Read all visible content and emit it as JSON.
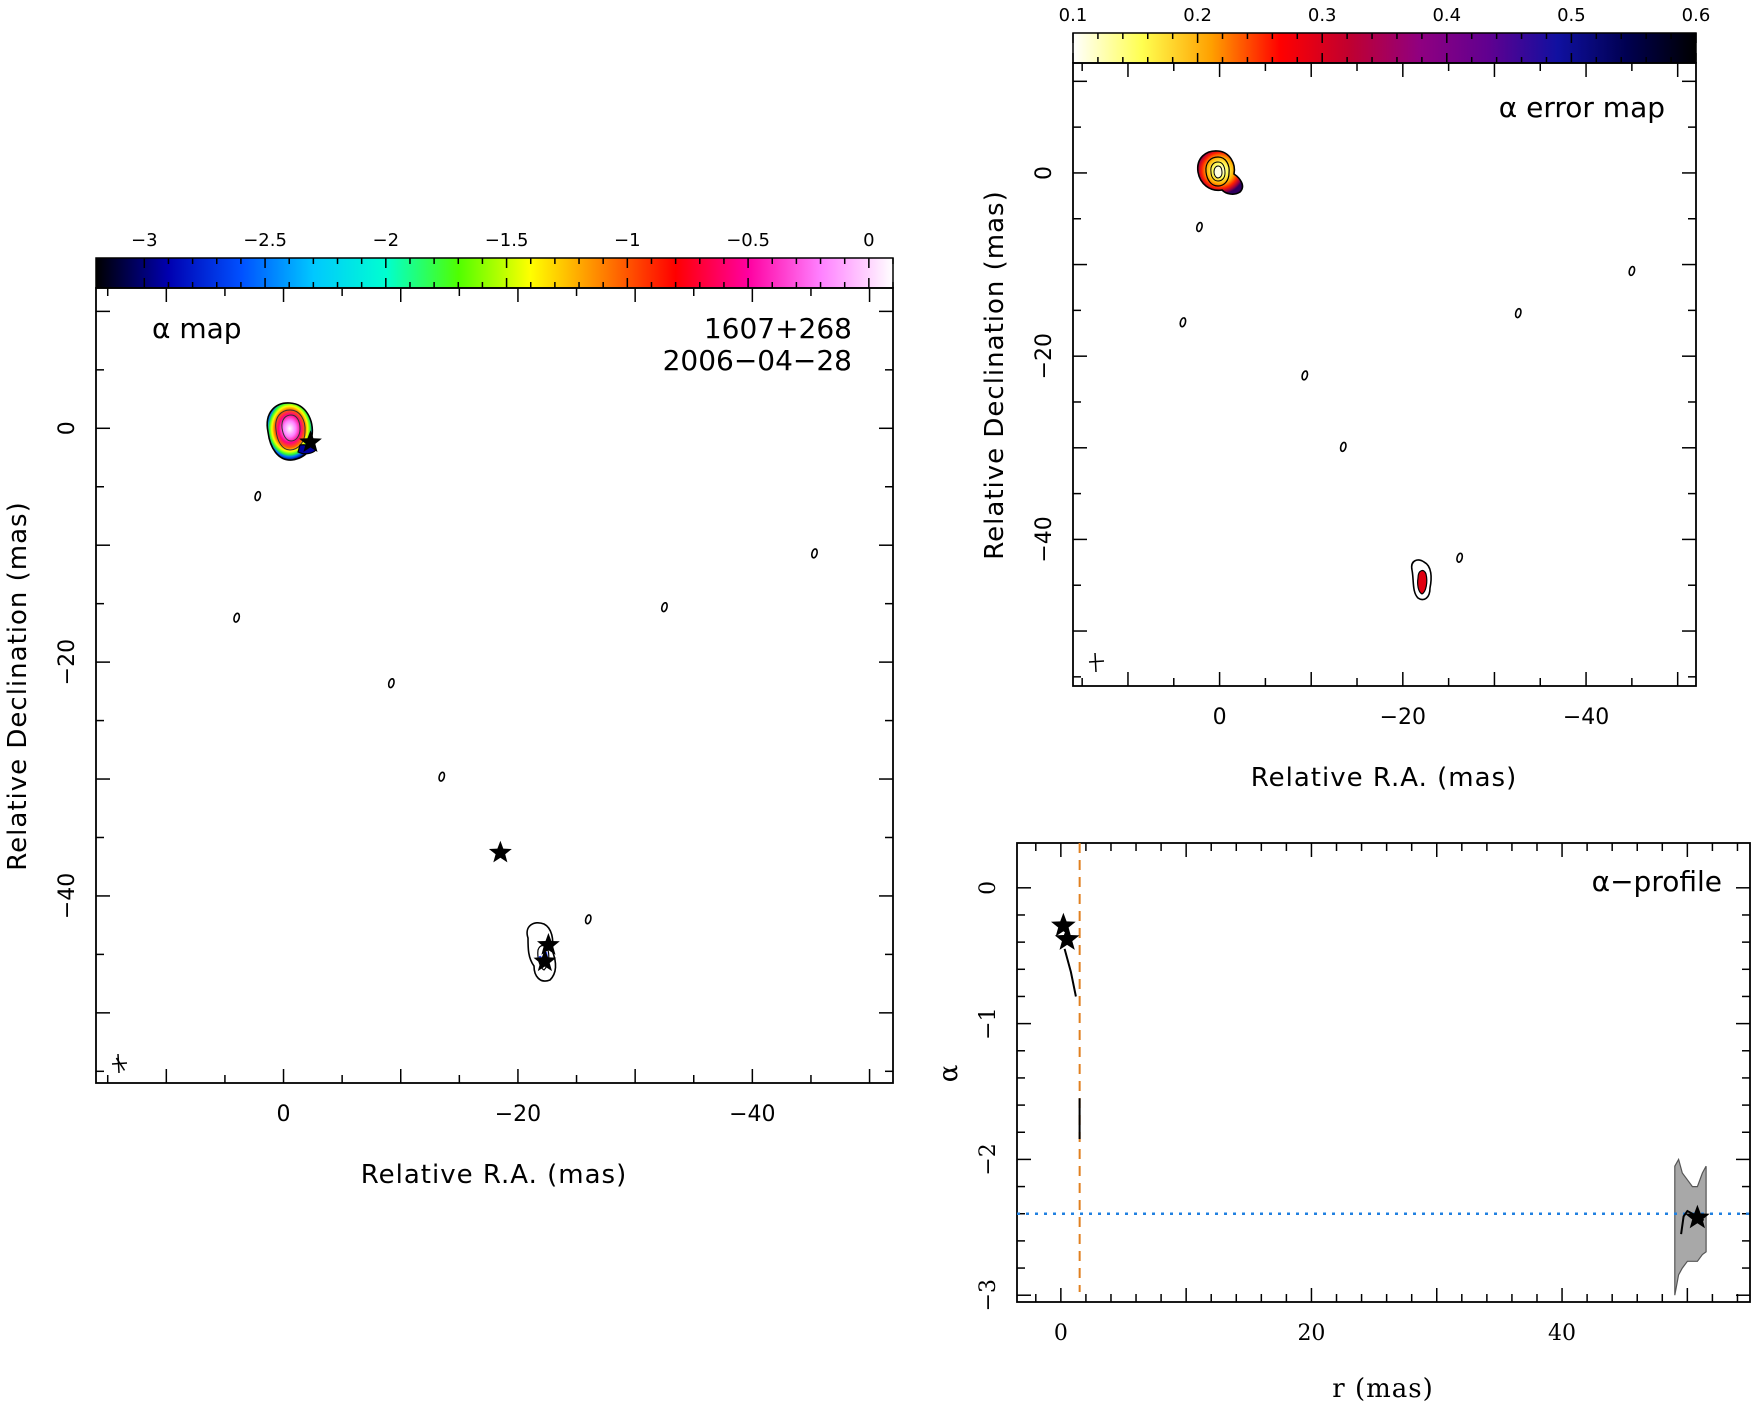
{
  "chart_data": [
    {
      "type": "heatmap",
      "panel": "alpha-map",
      "title": "α map",
      "source": "1607+268",
      "epoch": "2006−04−28",
      "xlabel": "Relative R.A. (mas)",
      "ylabel": "Relative Declination (mas)",
      "xlim": [
        16,
        -52
      ],
      "ylim": [
        -56,
        12
      ],
      "xticks": [
        0,
        -20,
        -40
      ],
      "xtick_labels": [
        "0",
        "−20",
        "−40"
      ],
      "yticks": [
        0,
        -20,
        -40
      ],
      "ytick_labels": [
        "0",
        "−20",
        "−40"
      ],
      "colorbar": {
        "range": [
          -3.2,
          0.1
        ],
        "ticks": [
          -3,
          -2.5,
          -2,
          -1.5,
          -1,
          -0.5,
          0
        ],
        "tick_labels": [
          "−3",
          "−2.5",
          "−2",
          "−1.5",
          "−1",
          "−0.5",
          "0"
        ],
        "stops": [
          "#000000",
          "#0000b0",
          "#0050ff",
          "#00c8ff",
          "#00ffd0",
          "#50ff00",
          "#ffff00",
          "#ff8000",
          "#ff0000",
          "#ff00a0",
          "#ff80ff",
          "#ffffff"
        ]
      },
      "stars": [
        {
          "x": -2.3,
          "y": -1.2
        },
        {
          "x": -18.5,
          "y": -36.3
        },
        {
          "x": -22.6,
          "y": -44.2
        },
        {
          "x": -22.3,
          "y": -45.6
        }
      ],
      "small_contours": [
        {
          "x": 2.2,
          "y": -5.8
        },
        {
          "x": 4,
          "y": -16.2
        },
        {
          "x": -9.2,
          "y": -21.8
        },
        {
          "x": -13.5,
          "y": -29.8
        },
        {
          "x": -26,
          "y": -42
        },
        {
          "x": -32.5,
          "y": -15.3
        },
        {
          "x": -45.3,
          "y": -10.7
        }
      ]
    },
    {
      "type": "heatmap",
      "panel": "alpha-error-map",
      "title": "α error map",
      "xlabel": "Relative R.A. (mas)",
      "ylabel": "Relative Declination (mas)",
      "xlim": [
        16,
        -52
      ],
      "ylim": [
        -56,
        12
      ],
      "xticks": [
        0,
        -20,
        -40
      ],
      "xtick_labels": [
        "0",
        "−20",
        "−40"
      ],
      "yticks": [
        0,
        -20,
        -40
      ],
      "ytick_labels": [
        "0",
        "−20",
        "−40"
      ],
      "colorbar": {
        "range": [
          0.1,
          0.6
        ],
        "ticks": [
          0.1,
          0.2,
          0.3,
          0.4,
          0.5,
          0.6
        ],
        "tick_labels": [
          "0.1",
          "0.2",
          "0.3",
          "0.4",
          "0.5",
          "0.6"
        ],
        "stops": [
          "#ffffff",
          "#ffff50",
          "#ffa000",
          "#ff0000",
          "#c00030",
          "#900080",
          "#600090",
          "#1010a0",
          "#000050",
          "#000000"
        ]
      },
      "small_contours": [
        {
          "x": 2.2,
          "y": -5.9
        },
        {
          "x": 4,
          "y": -16.3
        },
        {
          "x": -9.3,
          "y": -22.1
        },
        {
          "x": -13.5,
          "y": -29.9
        },
        {
          "x": -26.2,
          "y": -42
        },
        {
          "x": -32.6,
          "y": -15.3
        },
        {
          "x": -45,
          "y": -10.7
        }
      ]
    },
    {
      "type": "line",
      "panel": "alpha-profile",
      "title": "α−profile",
      "xlabel": "r (mas)",
      "ylabel": "α",
      "xlim": [
        -3.5,
        55
      ],
      "ylim": [
        -3.05,
        0.33
      ],
      "xticks": [
        0,
        20,
        40
      ],
      "xtick_labels": [
        "0",
        "20",
        "40"
      ],
      "yticks": [
        0,
        -1,
        -2,
        -3
      ],
      "ytick_labels": [
        "0",
        "−1",
        "−2",
        "−3"
      ],
      "vline_x": 1.5,
      "hline_y": -2.4,
      "stars": [
        {
          "x": 0.2,
          "y": -0.28
        },
        {
          "x": 0.5,
          "y": -0.38
        },
        {
          "x": 50.8,
          "y": -2.43
        }
      ],
      "segments": [
        {
          "x": [
            0.3,
            0.8,
            1.2
          ],
          "y": [
            -0.45,
            -0.62,
            -0.8
          ]
        },
        {
          "x": [
            1.5,
            1.5
          ],
          "y": [
            -1.55,
            -1.85
          ]
        },
        {
          "x": [
            49.5,
            49.7,
            50.0,
            50.4,
            50.8,
            51.3
          ],
          "y": [
            -2.55,
            -2.42,
            -2.38,
            -2.4,
            -2.42,
            -2.45
          ]
        }
      ],
      "error_band": {
        "x": [
          49.0,
          49.3,
          49.6,
          50.0,
          50.4,
          50.8,
          51.2,
          51.5
        ],
        "upper": [
          -2.05,
          -2.0,
          -2.1,
          -2.15,
          -2.2,
          -2.2,
          -2.1,
          -2.05
        ],
        "lower": [
          -3.0,
          -2.85,
          -2.8,
          -2.75,
          -2.75,
          -2.75,
          -2.7,
          -2.68
        ]
      }
    }
  ]
}
